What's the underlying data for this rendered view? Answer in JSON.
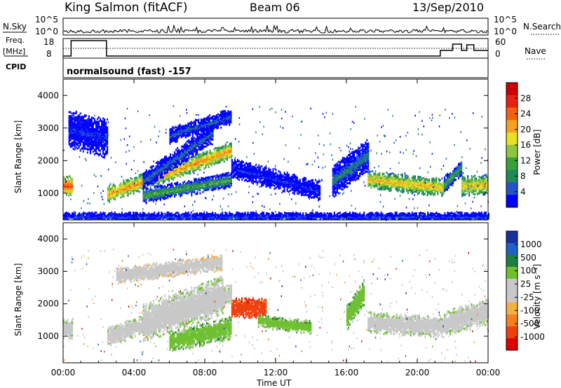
{
  "header": {
    "station": "King Salmon (fitACF)",
    "beam": "Beam 06",
    "date": "13/Sep/2010"
  },
  "top_panel": {
    "left_label_1": "N.Sky",
    "left_label_2a": "Freq.",
    "left_label_2b": "[MHz]",
    "left_label_3": "CPID",
    "right_label_1": "N.Search",
    "right_label_2": "Nave",
    "nsky_ticks": [
      "10^5",
      "10^0"
    ],
    "freq_ticks": [
      "18",
      "8"
    ],
    "nave_ticks": [
      "60",
      "0"
    ],
    "cpid_text": "normalsound (fast) -157"
  },
  "colors": {
    "power_scale": [
      "#0000ff",
      "#2255cc",
      "#1e8a5a",
      "#3aa03a",
      "#8ec63f",
      "#e8e020",
      "#f4a020",
      "#f46010",
      "#e82010",
      "#cc0000"
    ],
    "velocity_scale": [
      "#1830a0",
      "#2060c8",
      "#1e8040",
      "#6ec030",
      "#c8c8c8",
      "#c8c8c8",
      "#f4b040",
      "#f48020",
      "#f04010",
      "#e00000"
    ]
  },
  "chart_data": [
    {
      "type": "heatmap",
      "name": "power",
      "title": "",
      "xlabel": "Time UT",
      "ylabel": "Slant Range [km]",
      "xlim": [
        0,
        24
      ],
      "ylim": [
        180,
        4500
      ],
      "x_ticks": [
        "00:00",
        "04:00",
        "08:00",
        "12:00",
        "16:00",
        "20:00",
        "00:00"
      ],
      "y_ticks": [
        1000,
        2000,
        3000,
        4000
      ],
      "colorbar": {
        "label": "Power [dB]",
        "ticks": [
          4,
          8,
          12,
          16,
          20,
          24,
          28
        ],
        "range": [
          0,
          32
        ]
      },
      "features": [
        {
          "kind": "band",
          "t0": 0.0,
          "t1": 0.5,
          "r0": 1260,
          "r1": 1260,
          "w": 300,
          "level": 25
        },
        {
          "kind": "band",
          "t0": 2.5,
          "t1": 9.5,
          "r0": 1000,
          "r1": 2350,
          "w": 260,
          "level": 22
        },
        {
          "kind": "band",
          "t0": 4.5,
          "t1": 9.5,
          "r0": 950,
          "r1": 1450,
          "w": 240,
          "level": 12
        },
        {
          "kind": "band",
          "t0": 4.5,
          "t1": 8.5,
          "r0": 1400,
          "r1": 2900,
          "w": 300,
          "level": 7
        },
        {
          "kind": "band",
          "t0": 6.0,
          "t1": 9.5,
          "r0": 2800,
          "r1": 3400,
          "w": 250,
          "level": 6
        },
        {
          "kind": "band",
          "t0": 9.5,
          "t1": 14.5,
          "r0": 1800,
          "r1": 1100,
          "w": 300,
          "level": 4
        },
        {
          "kind": "band",
          "t0": 15.2,
          "t1": 17.2,
          "r0": 1400,
          "r1": 2200,
          "w": 500,
          "level": 8
        },
        {
          "kind": "band",
          "t0": 17.2,
          "t1": 21.5,
          "r0": 1450,
          "r1": 1200,
          "w": 280,
          "level": 20
        },
        {
          "kind": "band",
          "t0": 21.5,
          "t1": 22.5,
          "r0": 1300,
          "r1": 1850,
          "w": 250,
          "level": 12
        },
        {
          "kind": "band",
          "t0": 22.5,
          "t1": 24.0,
          "r0": 1250,
          "r1": 1300,
          "w": 300,
          "level": 20
        },
        {
          "kind": "band",
          "t0": 0.3,
          "t1": 2.5,
          "r0": 3000,
          "r1": 2700,
          "w": 600,
          "level": 4
        },
        {
          "kind": "band",
          "t0": 0.0,
          "t1": 24.0,
          "r0": 300,
          "r1": 300,
          "w": 150,
          "level": 5
        }
      ]
    },
    {
      "type": "heatmap",
      "name": "velocity",
      "title": "",
      "xlabel": "Time UT",
      "ylabel": "Slant Range [km]",
      "xlim": [
        0,
        24
      ],
      "ylim": [
        180,
        4500
      ],
      "x_ticks": [
        "00:00",
        "04:00",
        "08:00",
        "12:00",
        "16:00",
        "20:00",
        "00:00"
      ],
      "y_ticks": [
        1000,
        2000,
        3000,
        4000
      ],
      "colorbar": {
        "label": "Velocity [m s⁻¹]",
        "ticks": [
          1000,
          500,
          100,
          25,
          -25,
          -100,
          -500,
          -1000
        ]
      },
      "features": [
        {
          "kind": "band",
          "t0": 0.0,
          "t1": 0.5,
          "r0": 1260,
          "r1": 1260,
          "w": 300,
          "level": 4
        },
        {
          "kind": "band",
          "t0": 2.5,
          "t1": 9.5,
          "r0": 1000,
          "r1": 2350,
          "w": 300,
          "level": 4
        },
        {
          "kind": "band",
          "t0": 4.5,
          "t1": 9.0,
          "r0": 1450,
          "r1": 2300,
          "w": 600,
          "level": 4
        },
        {
          "kind": "band",
          "t0": 6.0,
          "t1": 9.5,
          "r0": 850,
          "r1": 1300,
          "w": 350,
          "level": 3
        },
        {
          "kind": "band",
          "t0": 9.5,
          "t1": 11.5,
          "r0": 1900,
          "r1": 1900,
          "w": 300,
          "level": 8
        },
        {
          "kind": "band",
          "t0": 11.0,
          "t1": 14.0,
          "r0": 1500,
          "r1": 1300,
          "w": 200,
          "level": 3
        },
        {
          "kind": "band",
          "t0": 16.0,
          "t1": 17.0,
          "r0": 1600,
          "r1": 2400,
          "w": 400,
          "level": 3
        },
        {
          "kind": "band",
          "t0": 17.2,
          "t1": 21.5,
          "r0": 1450,
          "r1": 1300,
          "w": 320,
          "level": 4
        },
        {
          "kind": "band",
          "t0": 21.5,
          "t1": 24.0,
          "r0": 1400,
          "r1": 1800,
          "w": 400,
          "level": 4
        },
        {
          "kind": "band",
          "t0": 3.0,
          "t1": 9.0,
          "r0": 2900,
          "r1": 3300,
          "w": 250,
          "level": 5
        }
      ]
    }
  ]
}
